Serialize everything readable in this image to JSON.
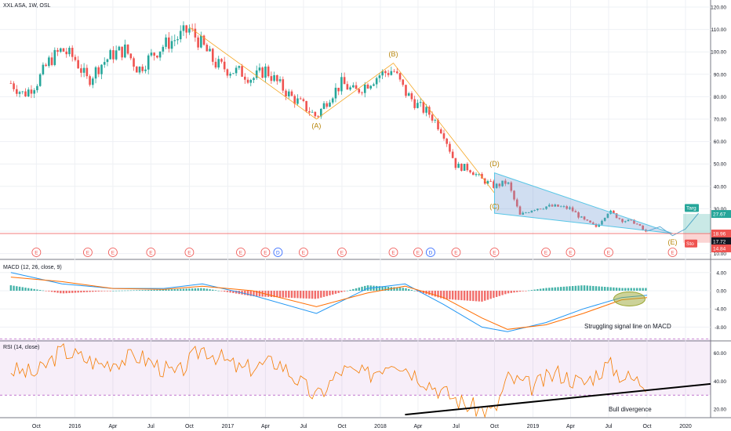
{
  "header": {
    "symbol_line": "XXL ASA, 1W, OSL",
    "macd_title": "MACD (12, 26, close, 9)",
    "rsi_title": "RSI (14, close)"
  },
  "chart_data": [
    {
      "type": "candlestick",
      "title": "XXL ASA, 1W, OSL",
      "y_axis_ticks": [
        "120.00",
        "110.00",
        "100.00",
        "90.00",
        "80.00",
        "70.00",
        "60.00",
        "50.00",
        "40.00",
        "30.00",
        "20.00",
        "10.00"
      ],
      "x_axis_ticks": [
        "Oct",
        "2016",
        "Apr",
        "Jul",
        "Oct",
        "2017",
        "Apr",
        "Jul",
        "Oct",
        "2018",
        "Apr",
        "Jul",
        "Oct",
        "2019",
        "Apr",
        "Jul",
        "Oct",
        "2020"
      ],
      "price_path": [
        {
          "date": "2015-08",
          "close": 86
        },
        {
          "date": "2015-09",
          "close": 81
        },
        {
          "date": "2015-10",
          "close": 86
        },
        {
          "date": "2015-11",
          "close": 96
        },
        {
          "date": "2015-12",
          "close": 101
        },
        {
          "date": "2016-01",
          "close": 97
        },
        {
          "date": "2016-02",
          "close": 87
        },
        {
          "date": "2016-03",
          "close": 94
        },
        {
          "date": "2016-04",
          "close": 99
        },
        {
          "date": "2016-05",
          "close": 101
        },
        {
          "date": "2016-06",
          "close": 92
        },
        {
          "date": "2016-07",
          "close": 98
        },
        {
          "date": "2016-08",
          "close": 103
        },
        {
          "date": "2016-09",
          "close": 106
        },
        {
          "date": "2016-10",
          "close": 110
        },
        {
          "date": "2016-11",
          "close": 103
        },
        {
          "date": "2016-12",
          "close": 95
        },
        {
          "date": "2017-01",
          "close": 92
        },
        {
          "date": "2017-02",
          "close": 91
        },
        {
          "date": "2017-03",
          "close": 88
        },
        {
          "date": "2017-04",
          "close": 92
        },
        {
          "date": "2017-05",
          "close": 86
        },
        {
          "date": "2017-06",
          "close": 80
        },
        {
          "date": "2017-07",
          "close": 76
        },
        {
          "date": "2017-08",
          "close": 71
        },
        {
          "date": "2017-09",
          "close": 80
        },
        {
          "date": "2017-10",
          "close": 86
        },
        {
          "date": "2017-11",
          "close": 82
        },
        {
          "date": "2017-12",
          "close": 86
        },
        {
          "date": "2018-01",
          "close": 90
        },
        {
          "date": "2018-02",
          "close": 92
        },
        {
          "date": "2018-03",
          "close": 82
        },
        {
          "date": "2018-04",
          "close": 76
        },
        {
          "date": "2018-05",
          "close": 72
        },
        {
          "date": "2018-06",
          "close": 64
        },
        {
          "date": "2018-07",
          "close": 49
        },
        {
          "date": "2018-08",
          "close": 48
        },
        {
          "date": "2018-09",
          "close": 43
        },
        {
          "date": "2018-10",
          "close": 40
        },
        {
          "date": "2018-11",
          "close": 42
        },
        {
          "date": "2018-12",
          "close": 27
        },
        {
          "date": "2019-01",
          "close": 30
        },
        {
          "date": "2019-02",
          "close": 31
        },
        {
          "date": "2019-03",
          "close": 31
        },
        {
          "date": "2019-04",
          "close": 30
        },
        {
          "date": "2019-05",
          "close": 25
        },
        {
          "date": "2019-06",
          "close": 22
        },
        {
          "date": "2019-07",
          "close": 29
        },
        {
          "date": "2019-08",
          "close": 25
        },
        {
          "date": "2019-09",
          "close": 24
        },
        {
          "date": "2019-10",
          "close": 19
        }
      ],
      "wave_labels": [
        {
          "text": "(A)",
          "date": "2017-08",
          "value": 66
        },
        {
          "text": "(B)",
          "date": "2018-02",
          "value": 98
        },
        {
          "text": "(C)",
          "date": "2018-10",
          "value": 30
        },
        {
          "text": "(D)",
          "date": "2018-10",
          "value": 49
        },
        {
          "text": "(E)",
          "date": "2019-12",
          "value": 14
        }
      ],
      "price_labels": [
        {
          "text": "27.67",
          "value": 27.67,
          "color": "#26a69a"
        },
        {
          "text": "18.96",
          "value": 18.96,
          "color": "#ef5350"
        },
        {
          "text": "17.72",
          "value": 17.72,
          "color": "#131722"
        },
        {
          "text": "14.84",
          "value": 14.84,
          "color": "#ef5350"
        }
      ],
      "target_label": "Targ",
      "stop_label": "Sto",
      "earnings_markers": [
        "E",
        "E",
        "E",
        "E",
        "E",
        "E",
        "E",
        "D",
        "E",
        "E",
        "E",
        "E",
        "D",
        "E",
        "E",
        "E",
        "E",
        "E",
        "E"
      ],
      "earnings_marker_dates": [
        "2015-10",
        "2016-02",
        "2016-04",
        "2016-07",
        "2016-10",
        "2017-02",
        "2017-04",
        "2017-05",
        "2017-07",
        "2017-10",
        "2018-02",
        "2018-04",
        "2018-05",
        "2018-07",
        "2018-10",
        "2019-02",
        "2019-04",
        "2019-07",
        "2019-12"
      ]
    },
    {
      "type": "line",
      "title": "MACD (12, 26, close, 9)",
      "y_axis_ticks": [
        "4.00",
        "0.00",
        "-4.00",
        "-8.00"
      ],
      "annotation": "Struggling signal line on MACD",
      "series": [
        {
          "dates": [
            "2015-08",
            "2015-12",
            "2016-04",
            "2016-08",
            "2016-11",
            "2017-03",
            "2017-08",
            "2017-12",
            "2018-03",
            "2018-06",
            "2018-09",
            "2018-11",
            "2019-02",
            "2019-05",
            "2019-08",
            "2019-10"
          ],
          "values": [
            4,
            1.5,
            0.5,
            0.5,
            1.5,
            -1,
            -5,
            0.5,
            1.5,
            -3,
            -8,
            -9,
            -7,
            -4,
            -1.5,
            -1
          ]
        },
        {
          "dates": [
            "2015-08",
            "2015-12",
            "2016-04",
            "2016-08",
            "2016-11",
            "2017-03",
            "2017-08",
            "2017-12",
            "2018-03",
            "2018-06",
            "2018-09",
            "2018-11",
            "2019-02",
            "2019-05",
            "2019-08",
            "2019-10"
          ],
          "values": [
            3,
            2,
            0.5,
            0.3,
            1,
            0,
            -3.5,
            -0.5,
            1,
            -1.5,
            -6,
            -8.5,
            -7.5,
            -5,
            -2,
            -1.5
          ]
        }
      ]
    },
    {
      "type": "line",
      "title": "RSI (14, close)",
      "y_axis_ticks": [
        "60.00",
        "40.00",
        "20.00"
      ],
      "annotation": "Bull divergence",
      "rsi": {
        "dates": [
          "2015-08",
          "2015-10",
          "2015-12",
          "2016-03",
          "2016-06",
          "2016-09",
          "2016-11",
          "2017-02",
          "2017-05",
          "2017-08",
          "2017-10",
          "2017-12",
          "2018-02",
          "2018-04",
          "2018-06",
          "2018-08",
          "2018-10",
          "2018-11",
          "2019-01",
          "2019-03",
          "2019-05",
          "2019-07",
          "2019-08",
          "2019-10"
        ],
        "values": [
          48,
          45,
          62,
          52,
          58,
          44,
          64,
          48,
          54,
          28,
          48,
          44,
          56,
          44,
          32,
          22,
          18,
          42,
          36,
          46,
          38,
          52,
          44,
          38
        ]
      },
      "divergence_line": {
        "dates": [
          "2018-03",
          "2020-03"
        ],
        "values": [
          16,
          38
        ]
      }
    }
  ]
}
